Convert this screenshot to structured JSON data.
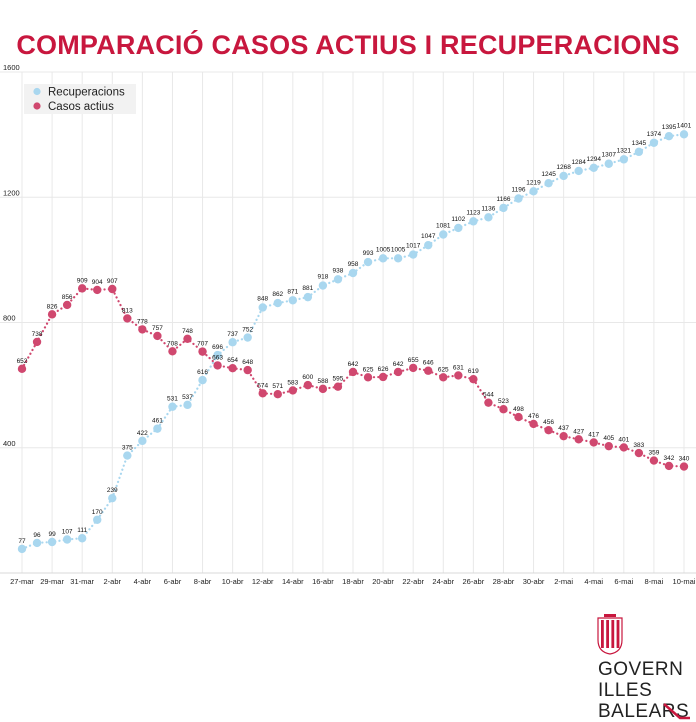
{
  "chart_data": {
    "type": "scatter",
    "title": "COMPARACIÓ CASOS ACTIUS I RECUPERACIONS",
    "ylim": [
      0,
      1600
    ],
    "yticks": [
      "1600",
      "1200",
      "800",
      "400"
    ],
    "ytick_values": [
      1600,
      1200,
      800,
      400
    ],
    "grid": true,
    "legend_placement": "top-left",
    "xticks": [
      "27-mar",
      "29-mar",
      "31-mar",
      "2-abr",
      "4-abr",
      "6-abr",
      "8-abr",
      "10-abr",
      "12-abr",
      "14-abr",
      "16-abr",
      "18-abr",
      "20-abr",
      "22-abr",
      "24-abr",
      "26-abr",
      "28-abr",
      "30-abr",
      "2-mai",
      "4-mai",
      "6-mai",
      "8-mai",
      "10-mai"
    ],
    "x": [
      "27-mar",
      "28-mar",
      "29-mar",
      "30-mar",
      "31-mar",
      "1-abr",
      "2-abr",
      "3-abr",
      "4-abr",
      "5-abr",
      "6-abr",
      "7-abr",
      "8-abr",
      "9-abr",
      "10-abr",
      "11-abr",
      "12-abr",
      "13-abr",
      "14-abr",
      "15-abr",
      "16-abr",
      "17-abr",
      "18-abr",
      "19-abr",
      "20-abr",
      "21-abr",
      "22-abr",
      "23-abr",
      "24-abr",
      "25-abr",
      "26-abr",
      "27-abr",
      "28-abr",
      "29-abr",
      "30-abr",
      "1-mai",
      "2-mai",
      "3-mai",
      "4-mai",
      "5-mai",
      "6-mai",
      "7-mai",
      "8-mai",
      "9-mai",
      "10-mai"
    ],
    "series": [
      {
        "name": "Recuperacions",
        "color": "#a9d7ef",
        "values": [
          77,
          96,
          99,
          107,
          111,
          170,
          239,
          375,
          422,
          461,
          531,
          537,
          616,
          696,
          737,
          752,
          848,
          862,
          871,
          881,
          918,
          938,
          958,
          993,
          1005,
          1005,
          1017,
          1047,
          1081,
          1102,
          1123,
          1136,
          1166,
          1196,
          1219,
          1245,
          1268,
          1284,
          1294,
          1307,
          1321,
          1345,
          1374,
          1395,
          1401
        ]
      },
      {
        "name": "Casos actius",
        "color": "#d0486f",
        "values": [
          652,
          738,
          826,
          856,
          909,
          904,
          907,
          813,
          778,
          757,
          708,
          748,
          707,
          663,
          654,
          648,
          574,
          571,
          583,
          600,
          588,
          595,
          642,
          625,
          626,
          642,
          655,
          646,
          625,
          631,
          619,
          544,
          523,
          498,
          476,
          456,
          437,
          427,
          417,
          405,
          401,
          383,
          359,
          342,
          340
        ]
      }
    ]
  },
  "colors": {
    "title": "#c8173e",
    "grid": "#e8e8e8",
    "axis_text": "#222222",
    "logo_red": "#c8173e"
  },
  "logo": {
    "line1": "GOVERN",
    "line2": "ILLES",
    "line3": "BALEARS"
  }
}
